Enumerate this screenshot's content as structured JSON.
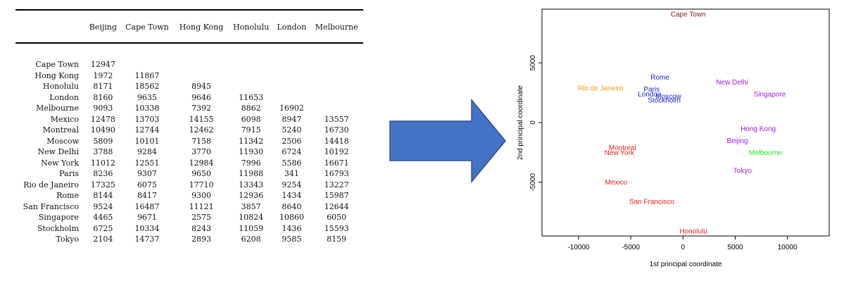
{
  "table": {
    "columns": [
      "Beijing",
      "Cape Town",
      "Hong Kong",
      "Honolulu",
      "London",
      "Melbourne"
    ],
    "rows": [
      {
        "city": "Cape Town",
        "values": [
          "12947",
          "",
          "",
          "",
          "",
          ""
        ]
      },
      {
        "city": "Hong Kong",
        "values": [
          "1972",
          "11867",
          "",
          "",
          "",
          ""
        ]
      },
      {
        "city": "Honolulu",
        "values": [
          "8171",
          "18562",
          "8945",
          "",
          "",
          ""
        ]
      },
      {
        "city": "London",
        "values": [
          "8160",
          "9635",
          "9646",
          "11653",
          "",
          ""
        ]
      },
      {
        "city": "Melbourne",
        "values": [
          "9093",
          "10338",
          "7392",
          "8862",
          "16902",
          ""
        ]
      },
      {
        "city": "Mexico",
        "values": [
          "12478",
          "13703",
          "14155",
          "6098",
          "8947",
          "13557"
        ]
      },
      {
        "city": "Montreal",
        "values": [
          "10490",
          "12744",
          "12462",
          "7915",
          "5240",
          "16730"
        ]
      },
      {
        "city": "Moscow",
        "values": [
          "5809",
          "10101",
          "7158",
          "11342",
          "2506",
          "14418"
        ]
      },
      {
        "city": "New Delhi",
        "values": [
          "3788",
          "9284",
          "3770",
          "11930",
          "6724",
          "10192"
        ]
      },
      {
        "city": "New York",
        "values": [
          "11012",
          "12551",
          "12984",
          "7996",
          "5586",
          "16671"
        ]
      },
      {
        "city": "Paris",
        "values": [
          "8236",
          "9307",
          "9650",
          "11988",
          "341",
          "16793"
        ]
      },
      {
        "city": "Rio de Janeiro",
        "values": [
          "17325",
          "6075",
          "17710",
          "13343",
          "9254",
          "13227"
        ]
      },
      {
        "city": "Rome",
        "values": [
          "8144",
          "8417",
          "9300",
          "12936",
          "1434",
          "15987"
        ]
      },
      {
        "city": "San Francisco",
        "values": [
          "9524",
          "16487",
          "11121",
          "3857",
          "8640",
          "12644"
        ]
      },
      {
        "city": "Singapore",
        "values": [
          "4465",
          "9671",
          "2575",
          "10824",
          "10860",
          "6050"
        ]
      },
      {
        "city": "Stockholm",
        "values": [
          "6725",
          "10334",
          "8243",
          "11059",
          "1436",
          "15593"
        ]
      },
      {
        "city": "Tokyo",
        "values": [
          "2104",
          "14737",
          "2893",
          "6208",
          "9585",
          "8159"
        ]
      }
    ]
  },
  "arrow": {
    "color": "#4472c4",
    "border": "#2f528f"
  },
  "chart_data": {
    "type": "scatter",
    "xlabel": "1st principal coordinate",
    "ylabel": "2nd principal coordinate",
    "xlim": [
      -13500,
      14000
    ],
    "ylim": [
      -9500,
      9500
    ],
    "xticks": [
      -10000,
      -5000,
      0,
      5000,
      10000
    ],
    "yticks": [
      -5000,
      0,
      5000
    ],
    "grid": false,
    "points": [
      {
        "label": "Cape Town",
        "x": 500,
        "y": 9100,
        "color": "#8b1a1a"
      },
      {
        "label": "Rome",
        "x": -2200,
        "y": 3800,
        "color": "#1f1fd0"
      },
      {
        "label": "Paris",
        "x": -3000,
        "y": 2800,
        "color": "#1f1fd0"
      },
      {
        "label": "London",
        "x": -3200,
        "y": 2400,
        "color": "#1f1fd0"
      },
      {
        "label": "Moscow",
        "x": -1400,
        "y": 2200,
        "color": "#1f1fd0"
      },
      {
        "label": "Stockholm",
        "x": -1800,
        "y": 1900,
        "color": "#1f1fd0"
      },
      {
        "label": "New Delhi",
        "x": 4700,
        "y": 3400,
        "color": "#a020f0"
      },
      {
        "label": "Singapore",
        "x": 8300,
        "y": 2400,
        "color": "#a020f0"
      },
      {
        "label": "Rio de Janeiro",
        "x": -7900,
        "y": 2900,
        "color": "#ff9a1a"
      },
      {
        "label": "Hong Kong",
        "x": 7200,
        "y": -500,
        "color": "#a020f0"
      },
      {
        "label": "Beijing",
        "x": 5200,
        "y": -1500,
        "color": "#a020f0"
      },
      {
        "label": "Melbourne",
        "x": 7900,
        "y": -2500,
        "color": "#22ee22"
      },
      {
        "label": "Tokyo",
        "x": 5700,
        "y": -4000,
        "color": "#a020f0"
      },
      {
        "label": "Montreal",
        "x": -5800,
        "y": -2100,
        "color": "#ee1c1c"
      },
      {
        "label": "New York",
        "x": -6100,
        "y": -2500,
        "color": "#ee1c1c"
      },
      {
        "label": "Mexico",
        "x": -6400,
        "y": -5000,
        "color": "#ee1c1c"
      },
      {
        "label": "San Francisco",
        "x": -3000,
        "y": -6600,
        "color": "#ee1c1c"
      },
      {
        "label": "Honolulu",
        "x": 1000,
        "y": -9100,
        "color": "#ee1c1c"
      }
    ]
  }
}
